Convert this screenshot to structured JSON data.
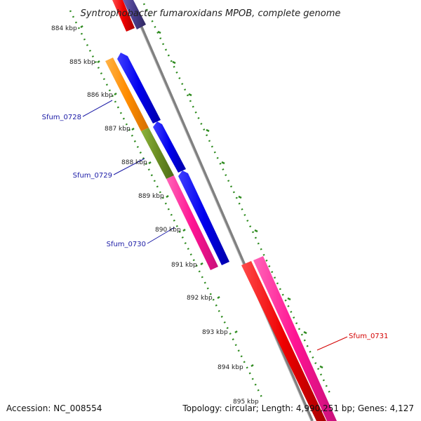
{
  "title": "Syntrophobacter fumaroxidans MPOB, complete genome",
  "footer": {
    "accession": "Accession: NC_008554",
    "summary": "Topology: circular; Length: 4,990,251 bp; Genes: 4,127"
  },
  "ticks": [
    "884 kbp",
    "885 kbp",
    "886 kbp",
    "887 kbp",
    "888 kbp",
    "889 kbp",
    "890 kbp",
    "891 kbp",
    "892 kbp",
    "893 kbp",
    "894 kbp",
    "895 kbp"
  ],
  "gene_labels": [
    {
      "text": "Sfum_0728",
      "color": "#1a1aa6"
    },
    {
      "text": "Sfum_0729",
      "color": "#1a1aa6"
    },
    {
      "text": "Sfum_0730",
      "color": "#1a1aa6"
    },
    {
      "text": "Sfum_0731",
      "color": "#d40000"
    }
  ],
  "colors": {
    "backbone": "#808080",
    "ruler_dots": "#2e8b1f",
    "gene_orange": "#ff8c00",
    "gene_olive": "#6b8e23",
    "gene_pink": "#ff1493",
    "gene_blue": "#0000ee",
    "gene_red": "#ee0000",
    "gene_slate": "#483d8b"
  }
}
